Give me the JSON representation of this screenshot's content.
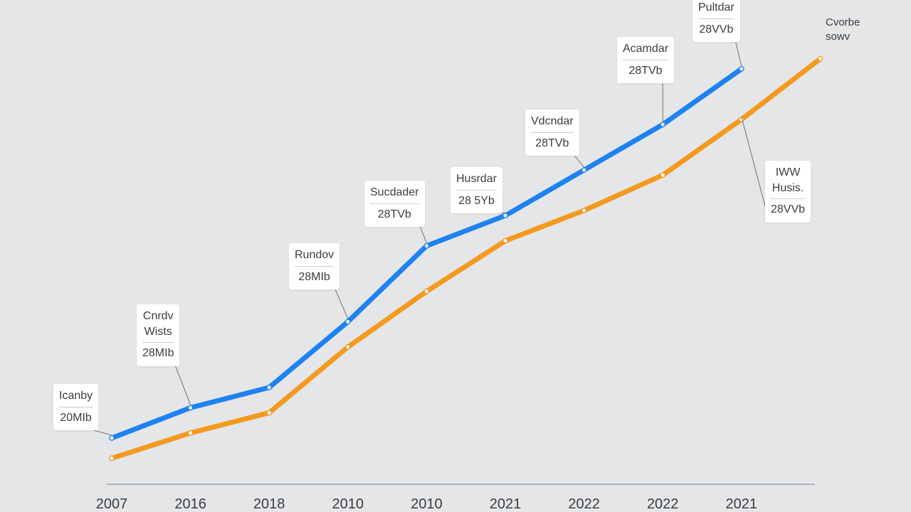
{
  "chart_data": {
    "type": "line",
    "categories": [
      "2007",
      "2016",
      "2018",
      "2010",
      "2010",
      "2021",
      "2022",
      "2022",
      "2021",
      ""
    ],
    "series": [
      {
        "name": "",
        "color": "#1e82f0",
        "values": [
          19,
          25,
          29,
          42,
          57,
          63,
          72,
          81,
          92,
          null
        ]
      },
      {
        "name": "",
        "color": "#f39a1f",
        "values": [
          15,
          20,
          24,
          37,
          48,
          58,
          64,
          71,
          82,
          94
        ]
      }
    ],
    "ylim": [
      10,
      100
    ],
    "grid": false,
    "xlabel": "",
    "ylabel": "",
    "annotations": [
      {
        "lines": [
          "Icanby"
        ],
        "value": "20MIb",
        "series": 0,
        "point": 0
      },
      {
        "lines": [
          "Cnrdv",
          "Wists"
        ],
        "value": "28MIb",
        "series": 0,
        "point": 1
      },
      {
        "lines": [
          "Rundov"
        ],
        "value": "28MIb",
        "series": 0,
        "point": 3
      },
      {
        "lines": [
          "Sucdader"
        ],
        "value": "28TVb",
        "series": 0,
        "point": 4
      },
      {
        "lines": [
          "Husrdar"
        ],
        "value": "28 5Yb",
        "series": 0,
        "point": 5
      },
      {
        "lines": [
          "Vdcndar"
        ],
        "value": "28TVb",
        "series": 0,
        "point": 6
      },
      {
        "lines": [
          "Acamdar"
        ],
        "value": "28TVb",
        "series": 0,
        "point": 7
      },
      {
        "lines": [
          "Pultdar"
        ],
        "value": "28VVb",
        "series": 0,
        "point": 8
      },
      {
        "lines": [
          "IWW",
          "Husis."
        ],
        "value": "28VVb",
        "series": 1,
        "point": 8
      }
    ],
    "legend_text": [
      "Cvorbe",
      "sowv"
    ]
  }
}
